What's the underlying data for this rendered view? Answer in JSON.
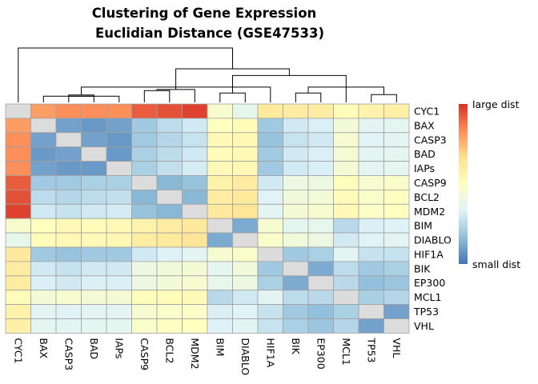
{
  "chart_data": {
    "type": "heatmap",
    "title_lines": [
      "Clustering of Gene Expression",
      "Euclidian Distance  (GSE47533)"
    ],
    "row_labels": [
      "CYC1",
      "BAX",
      "CASP3",
      "BAD",
      "IAPs",
      "CASP9",
      "BCL2",
      "MDM2",
      "BIM",
      "DIABLO",
      "HIF1A",
      "BIK",
      "EP300",
      "MCL1",
      "TP53",
      "VHL"
    ],
    "col_labels": [
      "CYC1",
      "BAX",
      "CASP3",
      "BAD",
      "IAPs",
      "CASP9",
      "BCL2",
      "MDM2",
      "BIM",
      "DIABLO",
      "HIF1A",
      "BIK",
      "EP300",
      "MCL1",
      "TP53",
      "VHL"
    ],
    "values": [
      [
        0.0,
        0.8,
        0.83,
        0.83,
        0.83,
        0.92,
        0.94,
        0.97,
        0.46,
        0.37,
        0.62,
        0.6,
        0.6,
        0.52,
        0.57,
        0.58
      ],
      [
        0.8,
        0.0,
        0.1,
        0.08,
        0.1,
        0.2,
        0.26,
        0.3,
        0.5,
        0.52,
        0.2,
        0.3,
        0.32,
        0.43,
        0.35,
        0.36
      ],
      [
        0.83,
        0.1,
        0.0,
        0.1,
        0.08,
        0.2,
        0.24,
        0.28,
        0.53,
        0.54,
        0.18,
        0.28,
        0.3,
        0.45,
        0.34,
        0.35
      ],
      [
        0.83,
        0.08,
        0.1,
        0.0,
        0.08,
        0.22,
        0.26,
        0.3,
        0.52,
        0.53,
        0.2,
        0.3,
        0.32,
        0.44,
        0.35,
        0.36
      ],
      [
        0.83,
        0.1,
        0.08,
        0.08,
        0.0,
        0.22,
        0.27,
        0.31,
        0.53,
        0.54,
        0.2,
        0.3,
        0.32,
        0.44,
        0.35,
        0.36
      ],
      [
        0.92,
        0.2,
        0.2,
        0.22,
        0.22,
        0.0,
        0.15,
        0.18,
        0.57,
        0.6,
        0.3,
        0.4,
        0.4,
        0.51,
        0.45,
        0.47
      ],
      [
        0.94,
        0.26,
        0.24,
        0.26,
        0.27,
        0.15,
        0.0,
        0.15,
        0.6,
        0.62,
        0.33,
        0.42,
        0.43,
        0.52,
        0.47,
        0.49
      ],
      [
        0.97,
        0.3,
        0.28,
        0.3,
        0.31,
        0.18,
        0.15,
        0.0,
        0.62,
        0.64,
        0.35,
        0.44,
        0.45,
        0.53,
        0.48,
        0.5
      ],
      [
        0.46,
        0.5,
        0.53,
        0.52,
        0.53,
        0.57,
        0.6,
        0.62,
        0.0,
        0.12,
        0.45,
        0.36,
        0.37,
        0.25,
        0.32,
        0.33
      ],
      [
        0.37,
        0.52,
        0.54,
        0.53,
        0.54,
        0.6,
        0.62,
        0.64,
        0.12,
        0.0,
        0.47,
        0.42,
        0.4,
        0.3,
        0.34,
        0.35
      ],
      [
        0.62,
        0.2,
        0.18,
        0.2,
        0.2,
        0.3,
        0.33,
        0.35,
        0.45,
        0.47,
        0.0,
        0.2,
        0.22,
        0.35,
        0.28,
        0.28
      ],
      [
        0.6,
        0.3,
        0.28,
        0.3,
        0.3,
        0.4,
        0.42,
        0.44,
        0.36,
        0.42,
        0.2,
        0.0,
        0.12,
        0.26,
        0.2,
        0.22
      ],
      [
        0.6,
        0.32,
        0.3,
        0.32,
        0.32,
        0.4,
        0.43,
        0.45,
        0.37,
        0.4,
        0.22,
        0.12,
        0.0,
        0.25,
        0.17,
        0.19
      ],
      [
        0.52,
        0.43,
        0.45,
        0.44,
        0.44,
        0.51,
        0.52,
        0.53,
        0.25,
        0.3,
        0.35,
        0.26,
        0.25,
        0.0,
        0.22,
        0.24
      ],
      [
        0.57,
        0.35,
        0.34,
        0.35,
        0.35,
        0.45,
        0.47,
        0.48,
        0.32,
        0.34,
        0.28,
        0.2,
        0.17,
        0.22,
        0.0,
        0.1
      ],
      [
        0.58,
        0.36,
        0.35,
        0.36,
        0.36,
        0.47,
        0.49,
        0.5,
        0.33,
        0.35,
        0.28,
        0.22,
        0.19,
        0.24,
        0.1,
        0.0
      ]
    ],
    "color_scale": [
      "#4575b4",
      "#91bfdb",
      "#e0f3f8",
      "#ffffbf",
      "#fee090",
      "#fc8d59",
      "#d73027"
    ],
    "diagonal_color": "#dcdcdc",
    "legend": {
      "top_label": "large dist",
      "bottom_label": "small dist"
    }
  }
}
